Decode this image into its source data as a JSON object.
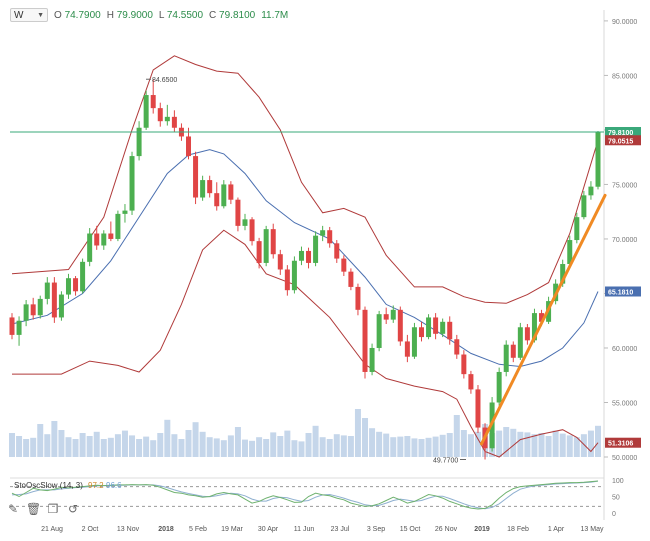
{
  "header": {
    "timeframe": "W",
    "open_label": "O",
    "open": "74.7900",
    "high_label": "H",
    "high": "79.9000",
    "low_label": "L",
    "low": "74.5500",
    "close_label": "C",
    "close": "79.8100",
    "volume": "11.7M"
  },
  "oscillator": {
    "name": "StoOscSlow (14, 3)",
    "k_value": "97.2",
    "d_value": "96.6",
    "levels": [
      "100",
      "50",
      "0"
    ]
  },
  "price_labels": {
    "current": "79.8100",
    "upper_band": "79.0515",
    "mid_band": "65.1810",
    "lower_band": "51.3106",
    "annotation_high": "84.6500",
    "annotation_low": "49.7700"
  },
  "colors": {
    "up": "#4caf50",
    "down": "#e04545",
    "bollinger_outer": "#b03a3a",
    "bollinger_mid": "#4a6fb0",
    "trendline": "#f08a24",
    "volume": "#c5d6ea",
    "current_line": "#3aa87a",
    "stoch_k": "#6fb26f",
    "stoch_d": "#8fb0d0"
  },
  "chart_data": {
    "type": "candlestick",
    "title": "",
    "y_ticks": [
      "90.0000",
      "85.0000",
      "80.0000",
      "75.0000",
      "70.0000",
      "65.0000",
      "60.0000",
      "55.0000",
      "50.0000"
    ],
    "ylim": [
      50,
      91
    ],
    "x_ticks": [
      "21 Aug",
      "2 Oct",
      "13 Nov",
      "2018",
      "5 Feb",
      "19 Mar",
      "30 Apr",
      "11 Jun",
      "23 Jul",
      "3 Sep",
      "15 Oct",
      "26 Nov",
      "2019",
      "18 Feb",
      "1 Apr",
      "13 May"
    ],
    "candles": [
      [
        62.8,
        63.2,
        60.8,
        61.2
      ],
      [
        61.2,
        62.9,
        60.2,
        62.5
      ],
      [
        62.5,
        64.4,
        62.0,
        64.0
      ],
      [
        64.0,
        64.6,
        62.6,
        63.0
      ],
      [
        63.0,
        64.8,
        62.7,
        64.5
      ],
      [
        64.5,
        66.5,
        64.0,
        66.0
      ],
      [
        66.0,
        66.5,
        62.3,
        62.8
      ],
      [
        62.8,
        65.2,
        62.5,
        64.9
      ],
      [
        64.9,
        66.8,
        64.5,
        66.4
      ],
      [
        66.4,
        66.6,
        64.8,
        65.2
      ],
      [
        65.2,
        68.2,
        65.0,
        67.9
      ],
      [
        67.9,
        71.0,
        67.5,
        70.5
      ],
      [
        70.5,
        71.2,
        69.0,
        69.4
      ],
      [
        69.4,
        70.8,
        69.0,
        70.5
      ],
      [
        70.5,
        71.6,
        69.8,
        70.0
      ],
      [
        70.0,
        72.6,
        69.8,
        72.3
      ],
      [
        72.3,
        73.2,
        71.5,
        72.6
      ],
      [
        72.6,
        78.0,
        72.2,
        77.6
      ],
      [
        77.6,
        80.8,
        77.2,
        80.2
      ],
      [
        80.2,
        83.6,
        80.0,
        83.2
      ],
      [
        83.2,
        84.65,
        81.5,
        82.0
      ],
      [
        82.0,
        82.5,
        80.3,
        80.8
      ],
      [
        80.8,
        82.3,
        80.4,
        81.2
      ],
      [
        81.2,
        81.8,
        79.8,
        80.2
      ],
      [
        80.2,
        80.6,
        79.0,
        79.4
      ],
      [
        79.4,
        80.2,
        77.3,
        77.6
      ],
      [
        77.6,
        78.0,
        73.2,
        73.8
      ],
      [
        73.8,
        75.8,
        73.5,
        75.4
      ],
      [
        75.4,
        75.8,
        73.8,
        74.2
      ],
      [
        74.2,
        75.2,
        72.6,
        73.0
      ],
      [
        73.0,
        75.4,
        72.8,
        75.0
      ],
      [
        75.0,
        75.3,
        73.2,
        73.6
      ],
      [
        73.6,
        73.8,
        70.7,
        71.2
      ],
      [
        71.2,
        72.3,
        70.8,
        71.8
      ],
      [
        71.8,
        72.0,
        69.4,
        69.8
      ],
      [
        69.8,
        70.1,
        67.3,
        67.8
      ],
      [
        67.8,
        71.2,
        67.5,
        70.9
      ],
      [
        70.9,
        71.4,
        68.2,
        68.6
      ],
      [
        68.6,
        69.0,
        66.7,
        67.2
      ],
      [
        67.2,
        67.6,
        64.8,
        65.3
      ],
      [
        65.3,
        68.4,
        65.0,
        68.0
      ],
      [
        68.0,
        69.3,
        67.6,
        68.9
      ],
      [
        68.9,
        69.2,
        67.3,
        67.8
      ],
      [
        67.8,
        70.7,
        67.5,
        70.3
      ],
      [
        70.3,
        71.2,
        69.8,
        70.8
      ],
      [
        70.8,
        71.1,
        69.2,
        69.6
      ],
      [
        69.6,
        69.9,
        67.8,
        68.2
      ],
      [
        68.2,
        68.5,
        66.6,
        67.0
      ],
      [
        67.0,
        67.3,
        65.3,
        65.6
      ],
      [
        65.6,
        65.9,
        63.0,
        63.5
      ],
      [
        63.5,
        63.8,
        57.2,
        57.8
      ],
      [
        57.8,
        60.4,
        57.5,
        60.0
      ],
      [
        60.0,
        63.4,
        59.7,
        63.1
      ],
      [
        63.1,
        63.7,
        62.2,
        62.6
      ],
      [
        62.6,
        63.9,
        62.3,
        63.5
      ],
      [
        63.5,
        63.8,
        60.2,
        60.6
      ],
      [
        60.6,
        61.2,
        58.7,
        59.2
      ],
      [
        59.2,
        62.3,
        59.0,
        61.9
      ],
      [
        61.9,
        62.4,
        60.6,
        61.0
      ],
      [
        61.0,
        63.1,
        60.8,
        62.8
      ],
      [
        62.8,
        63.2,
        60.8,
        61.3
      ],
      [
        61.3,
        62.7,
        61.0,
        62.4
      ],
      [
        62.4,
        62.9,
        60.3,
        60.8
      ],
      [
        60.8,
        61.2,
        59.0,
        59.4
      ],
      [
        59.4,
        59.8,
        57.2,
        57.6
      ],
      [
        57.6,
        57.9,
        55.8,
        56.2
      ],
      [
        56.2,
        56.6,
        52.2,
        52.7
      ],
      [
        52.7,
        53.1,
        49.77,
        50.8
      ],
      [
        50.8,
        55.5,
        50.5,
        55.0
      ],
      [
        55.0,
        58.2,
        54.7,
        57.8
      ],
      [
        57.8,
        60.7,
        57.4,
        60.3
      ],
      [
        60.3,
        60.6,
        58.7,
        59.1
      ],
      [
        59.1,
        62.3,
        58.9,
        61.9
      ],
      [
        61.9,
        62.2,
        60.3,
        60.7
      ],
      [
        60.7,
        63.6,
        60.5,
        63.2
      ],
      [
        63.2,
        63.5,
        62.0,
        62.4
      ],
      [
        62.4,
        64.7,
        62.2,
        64.3
      ],
      [
        64.3,
        66.3,
        64.0,
        65.9
      ],
      [
        65.9,
        68.1,
        65.6,
        67.7
      ],
      [
        67.7,
        70.3,
        67.4,
        69.9
      ],
      [
        69.9,
        72.4,
        69.6,
        72.0
      ],
      [
        72.0,
        74.4,
        71.8,
        74.0
      ],
      [
        74.0,
        75.3,
        73.6,
        74.8
      ],
      [
        74.79,
        79.9,
        74.55,
        79.81
      ]
    ],
    "bollinger_upper": [
      [
        0,
        66.8
      ],
      [
        8,
        67.2
      ],
      [
        13,
        72.0
      ],
      [
        17,
        80.0
      ],
      [
        20,
        85.5
      ],
      [
        23,
        86.8
      ],
      [
        26,
        86.0
      ],
      [
        29,
        85.4
      ],
      [
        32,
        85.2
      ],
      [
        35,
        83.0
      ],
      [
        38,
        80.0
      ],
      [
        41,
        75.2
      ],
      [
        44,
        72.4
      ],
      [
        47,
        72.8
      ],
      [
        50,
        72.0
      ],
      [
        53,
        68.5
      ],
      [
        57,
        65.6
      ],
      [
        61,
        65.6
      ],
      [
        64,
        64.7
      ],
      [
        67,
        64.2
      ],
      [
        70,
        64.1
      ],
      [
        73,
        64.9
      ],
      [
        76,
        66.0
      ],
      [
        79,
        70.5
      ],
      [
        83,
        79.05
      ]
    ],
    "bollinger_mid": [
      [
        0,
        62.2
      ],
      [
        5,
        63.0
      ],
      [
        10,
        65.0
      ],
      [
        14,
        68.0
      ],
      [
        18,
        72.0
      ],
      [
        22,
        76.0
      ],
      [
        25,
        77.7
      ],
      [
        28,
        78.2
      ],
      [
        30,
        77.8
      ],
      [
        33,
        76.0
      ],
      [
        36,
        73.5
      ],
      [
        40,
        71.5
      ],
      [
        45,
        70.0
      ],
      [
        50,
        66.5
      ],
      [
        53,
        64.0
      ],
      [
        57,
        62.8
      ],
      [
        61,
        61.2
      ],
      [
        65,
        59.5
      ],
      [
        69,
        58.5
      ],
      [
        72,
        58.3
      ],
      [
        75,
        58.8
      ],
      [
        78,
        60.0
      ],
      [
        81,
        62.3
      ],
      [
        83,
        65.18
      ]
    ],
    "bollinger_lower": [
      [
        0,
        57.6
      ],
      [
        7,
        57.6
      ],
      [
        11,
        58.8
      ],
      [
        15,
        58.4
      ],
      [
        18,
        57.8
      ],
      [
        21,
        59.8
      ],
      [
        24,
        64.0
      ],
      [
        27,
        69.0
      ],
      [
        30,
        70.8
      ],
      [
        33,
        69.5
      ],
      [
        36,
        66.8
      ],
      [
        40,
        65.8
      ],
      [
        45,
        62.8
      ],
      [
        50,
        58.5
      ],
      [
        53,
        57.2
      ],
      [
        57,
        56.5
      ],
      [
        61,
        56.0
      ],
      [
        63,
        55.3
      ],
      [
        65,
        52.8
      ],
      [
        67,
        50.5
      ],
      [
        69,
        50.0
      ],
      [
        72,
        51.6
      ],
      [
        75,
        52.1
      ],
      [
        78,
        52.5
      ],
      [
        80,
        51.8
      ],
      [
        82,
        50.5
      ],
      [
        83,
        51.31
      ]
    ],
    "trendline": [
      [
        66.5,
        51.2
      ],
      [
        84,
        74.0
      ]
    ],
    "volume": [
      0.4,
      0.35,
      0.3,
      0.32,
      0.55,
      0.38,
      0.6,
      0.45,
      0.33,
      0.3,
      0.4,
      0.35,
      0.42,
      0.3,
      0.32,
      0.38,
      0.44,
      0.36,
      0.3,
      0.34,
      0.28,
      0.4,
      0.62,
      0.38,
      0.3,
      0.45,
      0.58,
      0.42,
      0.33,
      0.31,
      0.28,
      0.36,
      0.5,
      0.29,
      0.27,
      0.33,
      0.3,
      0.41,
      0.35,
      0.44,
      0.28,
      0.26,
      0.4,
      0.52,
      0.33,
      0.3,
      0.38,
      0.36,
      0.35,
      0.8,
      0.65,
      0.48,
      0.42,
      0.39,
      0.33,
      0.34,
      0.35,
      0.31,
      0.3,
      0.32,
      0.34,
      0.37,
      0.4,
      0.7,
      0.45,
      0.38,
      0.42,
      0.55,
      0.4,
      0.44,
      0.5,
      0.47,
      0.42,
      0.41,
      0.38,
      0.4,
      0.35,
      0.44,
      0.39,
      0.36,
      0.33,
      0.38,
      0.44,
      0.52
    ],
    "stoch_k": [
      60,
      50,
      62,
      75,
      70,
      68,
      72,
      78,
      76,
      78,
      80,
      82,
      84,
      83,
      84,
      85,
      85,
      86,
      85,
      86,
      84,
      78,
      70,
      62,
      60,
      55,
      52,
      48,
      50,
      58,
      62,
      58,
      55,
      42,
      30,
      35,
      45,
      52,
      47,
      40,
      32,
      33,
      50,
      60,
      55,
      52,
      45,
      40,
      30,
      25,
      20,
      22,
      28,
      38,
      48,
      40,
      30,
      35,
      45,
      56,
      52,
      45,
      35,
      28,
      20,
      15,
      12,
      14,
      25,
      45,
      62,
      74,
      80,
      82,
      84,
      86,
      88,
      90,
      91,
      92,
      92,
      93,
      95,
      97
    ],
    "stoch_d": [
      55,
      56,
      58,
      65,
      70,
      70,
      70,
      73,
      75,
      77,
      78,
      80,
      82,
      83,
      83,
      84,
      84,
      85,
      85,
      85,
      85,
      82,
      77,
      70,
      64,
      59,
      55,
      51,
      49,
      52,
      57,
      60,
      58,
      52,
      42,
      36,
      36,
      44,
      48,
      46,
      40,
      35,
      38,
      48,
      55,
      56,
      51,
      45,
      38,
      32,
      25,
      22,
      23,
      30,
      38,
      42,
      39,
      35,
      38,
      45,
      51,
      51,
      44,
      36,
      28,
      21,
      16,
      13,
      17,
      28,
      44,
      60,
      72,
      78,
      82,
      84,
      86,
      88,
      89,
      90,
      91,
      92,
      93,
      96.6
    ]
  }
}
